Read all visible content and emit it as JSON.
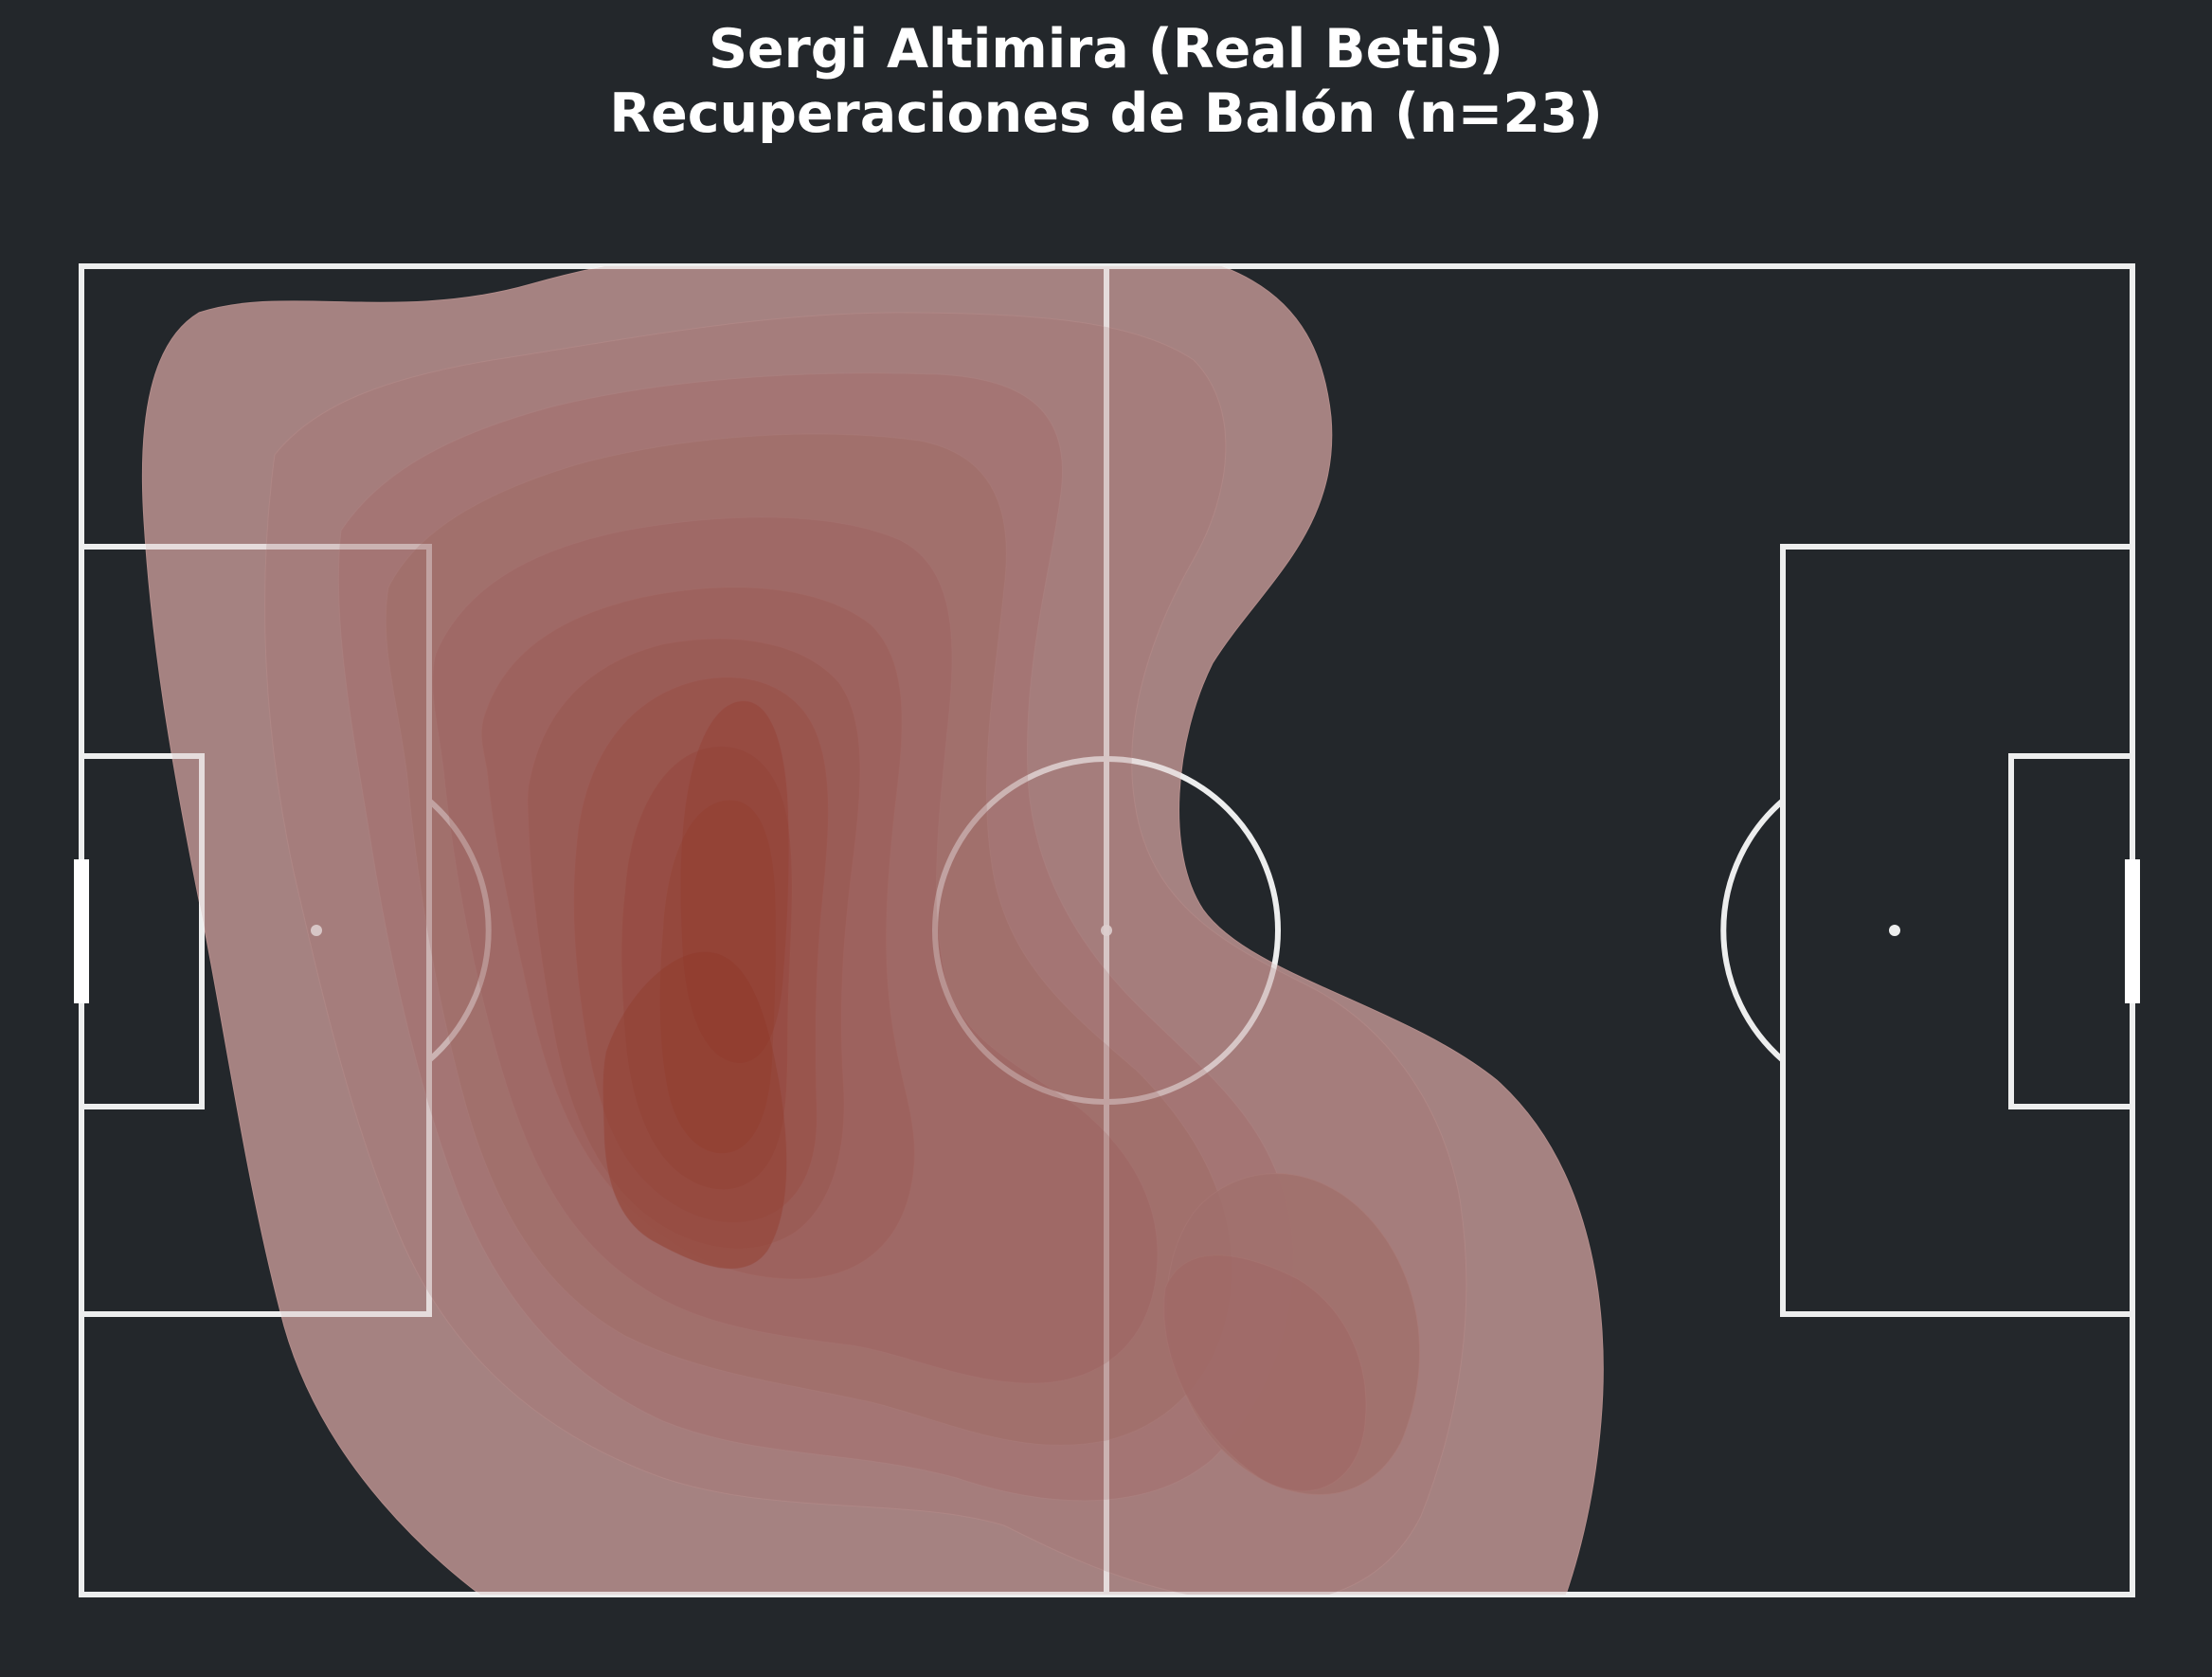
{
  "chart_data": {
    "type": "heatmap",
    "title": "Sergi Altimira (Real Betis)",
    "subtitle": "Recuperaciones de Balón (n=23)",
    "xlabel": "",
    "ylabel": "",
    "pitch": {
      "length": 120,
      "width": 80,
      "orientation": "horizontal"
    },
    "density_peaks": [
      {
        "x": 37,
        "y": 57,
        "level": 1.0
      },
      {
        "x": 39,
        "y": 33,
        "level": 0.9
      },
      {
        "x": 71,
        "y": 67,
        "level": 0.5
      }
    ],
    "contour_levels": 12,
    "grid": false,
    "legend": "none"
  },
  "colors": {
    "background": "#23272b",
    "lines": "#ffffff",
    "density_low": "#c49a98",
    "density_high": "#8f2f1c"
  }
}
